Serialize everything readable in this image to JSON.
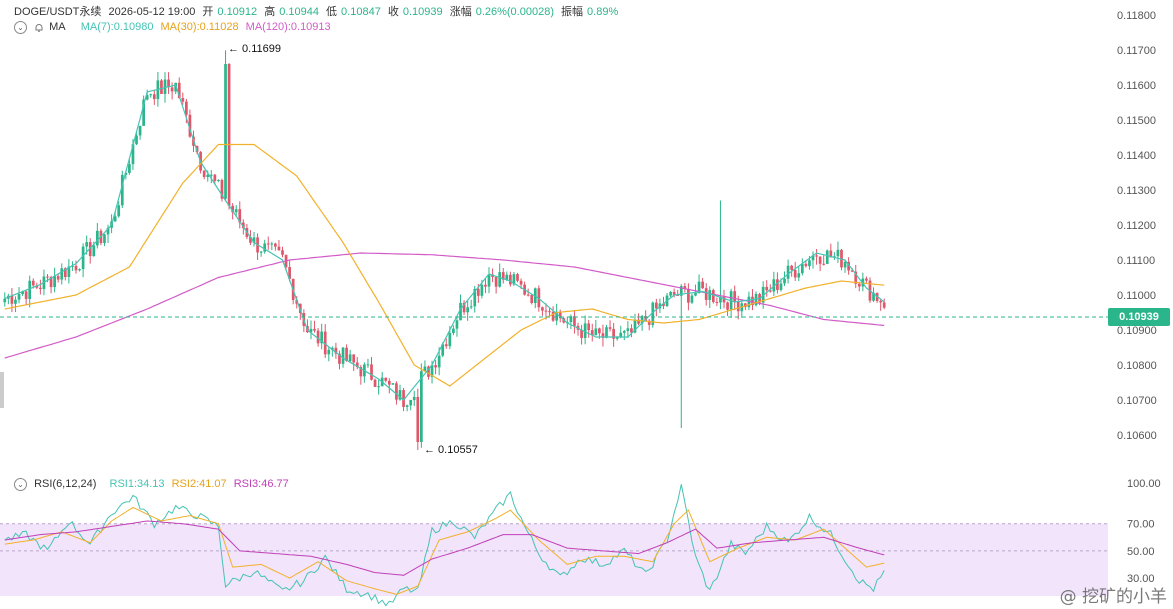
{
  "header": {
    "symbol": "DOGE/USDT永续",
    "datetime": "2026-05-12 19:00",
    "open_label": "开",
    "open": "0.10912",
    "high_label": "高",
    "high": "0.10944",
    "low_label": "低",
    "low": "0.10847",
    "close_label": "收",
    "close": "0.10939",
    "change_label": "涨幅",
    "change": "0.26%(0.00028)",
    "amplitude_label": "振幅",
    "amplitude": "0.89%"
  },
  "ma_legend": {
    "label": "MA",
    "ma7": "MA(7):0.10980",
    "ma30": "MA(30):0.11028",
    "ma120": "MA(120):0.10913"
  },
  "rsi_legend": {
    "label": "RSI(6,12,24)",
    "rsi1": "RSI1:34.13",
    "rsi2": "RSI2:41.07",
    "rsi3": "RSI3:46.77"
  },
  "annotations": {
    "high": "← 0.11699",
    "low": "← 0.10557"
  },
  "current_price_tag": "0.10939",
  "watermark": "@ 挖矿的小羊",
  "colors": {
    "up": "#2bb58a",
    "down": "#e0566b",
    "ma7": "#45c3b4",
    "ma30": "#f2b12b",
    "ma120": "#d25bc8",
    "rsi1": "#45c3b4",
    "rsi2": "#f2b12b",
    "rsi3": "#c13fb8",
    "rsi_band": "#f1e4fb"
  },
  "chart_data": [
    {
      "type": "candlestick",
      "ylim": [
        0.105,
        0.118
      ],
      "y_ticks": [
        "0.11800",
        "0.11700",
        "0.11600",
        "0.11500",
        "0.11400",
        "0.11300",
        "0.11200",
        "0.11100",
        "0.11000",
        "0.10900",
        "0.10800",
        "0.10700",
        "0.10600"
      ],
      "current_price": 0.10939,
      "ma_keypoints": {
        "ma7": [
          [
            0,
            0.1099
          ],
          [
            10,
            0.1103
          ],
          [
            20,
            0.1109
          ],
          [
            30,
            0.112
          ],
          [
            40,
            0.1158
          ],
          [
            48,
            0.116
          ],
          [
            55,
            0.1138
          ],
          [
            62,
            0.1127
          ],
          [
            70,
            0.1115
          ],
          [
            78,
            0.111
          ],
          [
            85,
            0.109
          ],
          [
            95,
            0.1082
          ],
          [
            105,
            0.1076
          ],
          [
            112,
            0.107
          ],
          [
            120,
            0.108
          ],
          [
            128,
            0.1096
          ],
          [
            136,
            0.1106
          ],
          [
            142,
            0.1104
          ],
          [
            150,
            0.1099
          ],
          [
            158,
            0.1092
          ],
          [
            166,
            0.1088
          ],
          [
            175,
            0.1088
          ],
          [
            182,
            0.1095
          ],
          [
            188,
            0.11
          ],
          [
            196,
            0.1101
          ],
          [
            205,
            0.1098
          ],
          [
            212,
            0.1099
          ],
          [
            220,
            0.1106
          ],
          [
            228,
            0.1112
          ],
          [
            236,
            0.111
          ],
          [
            242,
            0.1102
          ],
          [
            247,
            0.1098
          ]
        ],
        "ma30": [
          [
            0,
            0.1096
          ],
          [
            20,
            0.11
          ],
          [
            35,
            0.1108
          ],
          [
            50,
            0.1132
          ],
          [
            60,
            0.1143
          ],
          [
            70,
            0.1143
          ],
          [
            82,
            0.1134
          ],
          [
            95,
            0.1115
          ],
          [
            105,
            0.1098
          ],
          [
            115,
            0.108
          ],
          [
            125,
            0.1074
          ],
          [
            135,
            0.1082
          ],
          [
            145,
            0.109
          ],
          [
            155,
            0.1095
          ],
          [
            165,
            0.1096
          ],
          [
            175,
            0.1093
          ],
          [
            185,
            0.1092
          ],
          [
            195,
            0.1093
          ],
          [
            205,
            0.1096
          ],
          [
            215,
            0.1099
          ],
          [
            225,
            0.1102
          ],
          [
            235,
            0.1104
          ],
          [
            247,
            0.11028
          ]
        ],
        "ma120": [
          [
            0,
            0.1082
          ],
          [
            20,
            0.1088
          ],
          [
            40,
            0.1096
          ],
          [
            60,
            0.1105
          ],
          [
            80,
            0.111
          ],
          [
            100,
            0.1112
          ],
          [
            120,
            0.11115
          ],
          [
            140,
            0.111
          ],
          [
            160,
            0.1108
          ],
          [
            180,
            0.1104
          ],
          [
            200,
            0.11
          ],
          [
            215,
            0.1097
          ],
          [
            230,
            0.1093
          ],
          [
            247,
            0.10913
          ]
        ]
      },
      "annotations": [
        {
          "label": "0.11699",
          "index": 62
        },
        {
          "label": "0.10557",
          "index": 116
        }
      ]
    },
    {
      "type": "line",
      "title": "RSI(6,12,24)",
      "ylim": [
        0,
        100
      ],
      "y_ticks": [
        "100.00",
        "70.00",
        "50.00",
        "30.00"
      ],
      "band": [
        30,
        70
      ],
      "series": [
        {
          "name": "RSI1",
          "last": 34.13,
          "keypoints": [
            [
              0,
              58
            ],
            [
              6,
              62
            ],
            [
              12,
              50
            ],
            [
              18,
              72
            ],
            [
              24,
              55
            ],
            [
              30,
              78
            ],
            [
              36,
              90
            ],
            [
              42,
              70
            ],
            [
              48,
              82
            ],
            [
              55,
              75
            ],
            [
              60,
              68
            ],
            [
              62,
              25
            ],
            [
              70,
              35
            ],
            [
              78,
              20
            ],
            [
              84,
              28
            ],
            [
              90,
              45
            ],
            [
              96,
              22
            ],
            [
              102,
              18
            ],
            [
              108,
              10
            ],
            [
              112,
              22
            ],
            [
              116,
              20
            ],
            [
              120,
              65
            ],
            [
              126,
              72
            ],
            [
              132,
              60
            ],
            [
              138,
              80
            ],
            [
              142,
              92
            ],
            [
              146,
              68
            ],
            [
              150,
              48
            ],
            [
              156,
              30
            ],
            [
              162,
              45
            ],
            [
              168,
              40
            ],
            [
              174,
              50
            ],
            [
              180,
              32
            ],
            [
              186,
              58
            ],
            [
              190,
              98
            ],
            [
              194,
              45
            ],
            [
              198,
              20
            ],
            [
              204,
              55
            ],
            [
              208,
              48
            ],
            [
              214,
              68
            ],
            [
              220,
              56
            ],
            [
              226,
              75
            ],
            [
              232,
              62
            ],
            [
              236,
              44
            ],
            [
              240,
              28
            ],
            [
              244,
              22
            ],
            [
              247,
              34
            ]
          ]
        },
        {
          "name": "RSI2",
          "last": 41.07,
          "keypoints": [
            [
              0,
              55
            ],
            [
              8,
              58
            ],
            [
              16,
              64
            ],
            [
              24,
              56
            ],
            [
              30,
              72
            ],
            [
              36,
              82
            ],
            [
              44,
              72
            ],
            [
              52,
              76
            ],
            [
              60,
              70
            ],
            [
              64,
              38
            ],
            [
              72,
              40
            ],
            [
              80,
              30
            ],
            [
              88,
              42
            ],
            [
              96,
              28
            ],
            [
              104,
              22
            ],
            [
              110,
              18
            ],
            [
              116,
              24
            ],
            [
              122,
              58
            ],
            [
              130,
              64
            ],
            [
              138,
              74
            ],
            [
              142,
              80
            ],
            [
              150,
              58
            ],
            [
              158,
              40
            ],
            [
              166,
              46
            ],
            [
              174,
              46
            ],
            [
              182,
              42
            ],
            [
              188,
              70
            ],
            [
              192,
              80
            ],
            [
              198,
              42
            ],
            [
              206,
              52
            ],
            [
              214,
              60
            ],
            [
              222,
              58
            ],
            [
              230,
              66
            ],
            [
              236,
              52
            ],
            [
              242,
              38
            ],
            [
              247,
              41
            ]
          ]
        },
        {
          "name": "RSI3",
          "last": 46.77,
          "keypoints": [
            [
              0,
              58
            ],
            [
              10,
              62
            ],
            [
              20,
              64
            ],
            [
              30,
              68
            ],
            [
              40,
              72
            ],
            [
              50,
              70
            ],
            [
              60,
              66
            ],
            [
              66,
              50
            ],
            [
              76,
              48
            ],
            [
              86,
              46
            ],
            [
              96,
              40
            ],
            [
              104,
              34
            ],
            [
              112,
              32
            ],
            [
              120,
              44
            ],
            [
              130,
              52
            ],
            [
              140,
              62
            ],
            [
              148,
              62
            ],
            [
              158,
              52
            ],
            [
              168,
              50
            ],
            [
              178,
              48
            ],
            [
              186,
              56
            ],
            [
              194,
              66
            ],
            [
              200,
              52
            ],
            [
              210,
              56
            ],
            [
              220,
              58
            ],
            [
              230,
              60
            ],
            [
              240,
              52
            ],
            [
              247,
              47
            ]
          ]
        }
      ]
    }
  ]
}
